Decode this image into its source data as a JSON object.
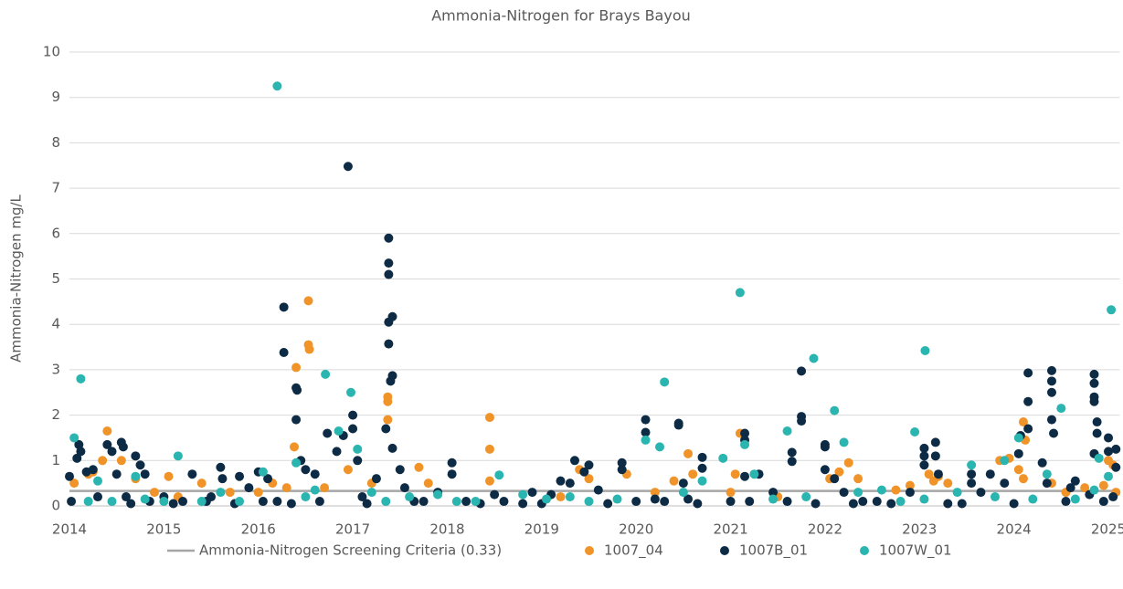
{
  "chart_data": {
    "type": "scatter",
    "title": "Ammonia-Nitrogen for Brays Bayou",
    "y_label": "Ammonia-Nitrogen mg/L",
    "xlim": [
      2014,
      2025.12
    ],
    "xticks": [
      2014,
      2015,
      2016,
      2017,
      2018,
      2019,
      2020,
      2021,
      2022,
      2023,
      2024,
      2025
    ],
    "ylim": [
      0,
      10
    ],
    "yticks": [
      0,
      1,
      2,
      3,
      4,
      5,
      6,
      7,
      8,
      9,
      10
    ],
    "grid": true,
    "legend": "bottom",
    "reference_line": {
      "name": "Ammonia-Nitrogen Screening Criteria (0.33)",
      "value": 0.33,
      "color": "#a6a6a6"
    },
    "series": [
      {
        "name": "1007_04",
        "color": "#f0942a",
        "x": [
          2014.05,
          2014.2,
          2014.25,
          2014.35,
          2014.4,
          2014.55,
          2014.7,
          2014.9,
          2015.05,
          2015.15,
          2015.4,
          2015.7,
          2016.0,
          2016.15,
          2016.3,
          2016.38,
          2016.4,
          2016.53,
          2016.54,
          2016.53,
          2016.7,
          2016.95,
          2017.2,
          2017.37,
          2017.37,
          2017.37,
          2017.7,
          2017.8,
          2018.45,
          2018.45,
          2018.45,
          2019.2,
          2019.4,
          2019.5,
          2019.9,
          2020.2,
          2020.4,
          2020.55,
          2020.6,
          2021.0,
          2021.1,
          2021.05,
          2021.5,
          2022.05,
          2022.15,
          2022.25,
          2022.35,
          2022.75,
          2022.9,
          2023.1,
          2023.15,
          2023.2,
          2023.3,
          2023.85,
          2023.95,
          2024.1,
          2024.12,
          2024.05,
          2024.1,
          2024.4,
          2024.55,
          2024.75,
          2024.95,
          2025.0,
          2025.05,
          2025.08
        ],
        "values": [
          0.5,
          0.7,
          0.75,
          1.0,
          1.65,
          1.0,
          0.6,
          0.3,
          0.65,
          0.2,
          0.5,
          0.3,
          0.3,
          0.5,
          0.4,
          1.3,
          3.05,
          3.55,
          3.45,
          4.52,
          0.4,
          0.8,
          0.5,
          2.3,
          2.4,
          1.9,
          0.85,
          0.5,
          1.95,
          1.25,
          0.55,
          0.2,
          0.8,
          0.6,
          0.7,
          0.3,
          0.55,
          1.15,
          0.7,
          0.3,
          1.6,
          0.7,
          0.2,
          0.6,
          0.75,
          0.95,
          0.6,
          0.35,
          0.45,
          0.7,
          0.55,
          0.65,
          0.5,
          1.0,
          1.05,
          1.85,
          1.45,
          0.8,
          0.6,
          0.5,
          0.3,
          0.4,
          0.45,
          1.0,
          0.9,
          0.3
        ]
      },
      {
        "name": "1007B_01",
        "color": "#0d2b45",
        "x": [
          2014.0,
          2014.02,
          2014.08,
          2014.1,
          2014.12,
          2014.18,
          2014.25,
          2014.3,
          2014.4,
          2014.45,
          2014.5,
          2014.55,
          2014.57,
          2014.6,
          2014.7,
          2014.75,
          2014.8,
          2014.85,
          2015.0,
          2015.2,
          2015.3,
          2015.5,
          2015.6,
          2015.62,
          2015.8,
          2015.9,
          2016.0,
          2016.1,
          2016.2,
          2016.27,
          2016.27,
          2016.4,
          2016.41,
          2016.4,
          2016.45,
          2016.5,
          2016.6,
          2016.65,
          2016.73,
          2016.83,
          2016.9,
          2016.95,
          2017.0,
          2017.0,
          2017.05,
          2017.1,
          2017.25,
          2017.35,
          2017.38,
          2017.38,
          2017.38,
          2017.38,
          2017.42,
          2017.38,
          2017.42,
          2017.4,
          2017.42,
          2017.5,
          2017.55,
          2017.75,
          2017.9,
          2018.05,
          2018.05,
          2018.2,
          2018.5,
          2018.6,
          2018.9,
          2019.1,
          2019.2,
          2019.3,
          2019.35,
          2019.45,
          2019.5,
          2019.6,
          2019.85,
          2019.85,
          2020.1,
          2020.1,
          2020.2,
          2020.3,
          2020.45,
          2020.45,
          2020.5,
          2020.55,
          2020.7,
          2020.7,
          2021.0,
          2021.15,
          2021.15,
          2021.15,
          2021.3,
          2021.45,
          2021.6,
          2021.65,
          2021.65,
          2021.75,
          2021.75,
          2021.75,
          2022.0,
          2022.0,
          2022.0,
          2022.1,
          2022.2,
          2022.4,
          2022.55,
          2022.9,
          2023.05,
          2023.05,
          2023.05,
          2023.17,
          2023.17,
          2023.2,
          2023.55,
          2023.55,
          2023.65,
          2023.75,
          2023.9,
          2024.05,
          2024.07,
          2024.15,
          2024.15,
          2024.15,
          2024.3,
          2024.35,
          2024.4,
          2024.4,
          2024.4,
          2024.4,
          2024.42,
          2024.6,
          2024.65,
          2024.8,
          2024.85,
          2024.88,
          2024.85,
          2024.85,
          2024.85,
          2024.85,
          2024.88,
          2025.0,
          2025.0,
          2025.08,
          2025.08,
          2025.05,
          2014.65,
          2015.1,
          2015.45,
          2015.75,
          2016.05,
          2016.35,
          2017.15,
          2017.65,
          2018.35,
          2018.8,
          2019.0,
          2019.7,
          2020.0,
          2020.65,
          2021.2,
          2021.9,
          2022.3,
          2022.7,
          2023.3,
          2023.45,
          2024.0,
          2024.55,
          2024.95
        ],
        "values": [
          0.65,
          0.1,
          1.05,
          1.35,
          1.2,
          0.75,
          0.8,
          0.2,
          1.35,
          1.2,
          0.7,
          1.4,
          1.3,
          0.2,
          1.1,
          0.9,
          0.7,
          0.1,
          0.2,
          0.1,
          0.7,
          0.2,
          0.85,
          0.6,
          0.65,
          0.4,
          0.75,
          0.6,
          0.1,
          4.38,
          3.38,
          2.6,
          2.55,
          1.9,
          1.0,
          0.8,
          0.7,
          0.1,
          1.6,
          1.2,
          1.55,
          7.48,
          2.0,
          1.7,
          1.0,
          0.2,
          0.6,
          1.7,
          5.9,
          5.35,
          5.1,
          4.05,
          4.17,
          3.57,
          2.87,
          2.75,
          1.27,
          0.8,
          0.4,
          0.1,
          0.3,
          0.95,
          0.7,
          0.1,
          0.25,
          0.1,
          0.3,
          0.25,
          0.55,
          0.5,
          1.0,
          0.75,
          0.9,
          0.35,
          0.95,
          0.8,
          1.9,
          1.62,
          0.15,
          0.1,
          1.82,
          1.78,
          0.5,
          0.15,
          1.07,
          0.83,
          0.1,
          1.6,
          1.45,
          0.65,
          0.7,
          0.3,
          0.1,
          1.18,
          0.98,
          2.97,
          1.97,
          1.87,
          1.35,
          1.3,
          0.8,
          0.6,
          0.3,
          0.1,
          0.1,
          0.3,
          1.27,
          1.1,
          0.9,
          1.4,
          1.1,
          0.7,
          0.7,
          0.5,
          0.3,
          0.7,
          0.5,
          1.15,
          1.55,
          2.93,
          2.3,
          1.7,
          0.95,
          0.5,
          2.98,
          2.75,
          2.5,
          1.9,
          1.6,
          0.4,
          0.55,
          0.25,
          1.15,
          1.6,
          2.9,
          2.7,
          2.4,
          2.3,
          1.85,
          1.5,
          1.2,
          1.25,
          0.85,
          0.2,
          0.05,
          0.05,
          0.1,
          0.05,
          0.1,
          0.05,
          0.05,
          0.1,
          0.05,
          0.05,
          0.05,
          0.05,
          0.1,
          0.05,
          0.1,
          0.05,
          0.05,
          0.05,
          0.05,
          0.05,
          0.05,
          0.1,
          0.1
        ]
      },
      {
        "name": "1007W_01",
        "color": "#2ab5b0",
        "x": [
          2014.05,
          2014.12,
          2014.2,
          2014.3,
          2014.45,
          2014.7,
          2014.8,
          2015.0,
          2015.15,
          2015.4,
          2015.6,
          2015.8,
          2016.05,
          2016.2,
          2016.4,
          2016.5,
          2016.6,
          2016.71,
          2016.85,
          2016.98,
          2017.05,
          2017.2,
          2017.35,
          2017.6,
          2017.9,
          2018.1,
          2018.3,
          2018.55,
          2018.8,
          2019.05,
          2019.3,
          2019.5,
          2019.8,
          2020.1,
          2020.25,
          2020.3,
          2020.5,
          2020.7,
          2020.92,
          2021.1,
          2021.15,
          2021.25,
          2021.45,
          2021.6,
          2021.8,
          2021.88,
          2022.1,
          2022.2,
          2022.35,
          2022.6,
          2022.8,
          2022.95,
          2023.05,
          2023.06,
          2023.4,
          2023.55,
          2023.8,
          2023.9,
          2024.05,
          2024.2,
          2024.35,
          2024.5,
          2024.65,
          2024.85,
          2024.9,
          2025.0,
          2025.03
        ],
        "values": [
          1.5,
          2.8,
          0.1,
          0.55,
          0.1,
          0.65,
          0.15,
          0.1,
          1.1,
          0.1,
          0.3,
          0.1,
          0.75,
          9.25,
          0.95,
          0.2,
          0.35,
          2.9,
          1.65,
          2.5,
          1.25,
          0.3,
          0.1,
          0.2,
          0.25,
          0.1,
          0.1,
          0.68,
          0.25,
          0.15,
          0.2,
          0.1,
          0.15,
          1.45,
          1.3,
          2.73,
          0.3,
          0.55,
          1.05,
          4.7,
          1.35,
          0.7,
          0.15,
          1.65,
          0.2,
          3.25,
          2.1,
          1.4,
          0.3,
          0.35,
          0.1,
          1.63,
          0.15,
          3.42,
          0.3,
          0.9,
          0.2,
          1.0,
          1.5,
          0.15,
          0.7,
          2.15,
          0.15,
          0.35,
          1.05,
          0.65,
          4.32
        ]
      }
    ]
  }
}
